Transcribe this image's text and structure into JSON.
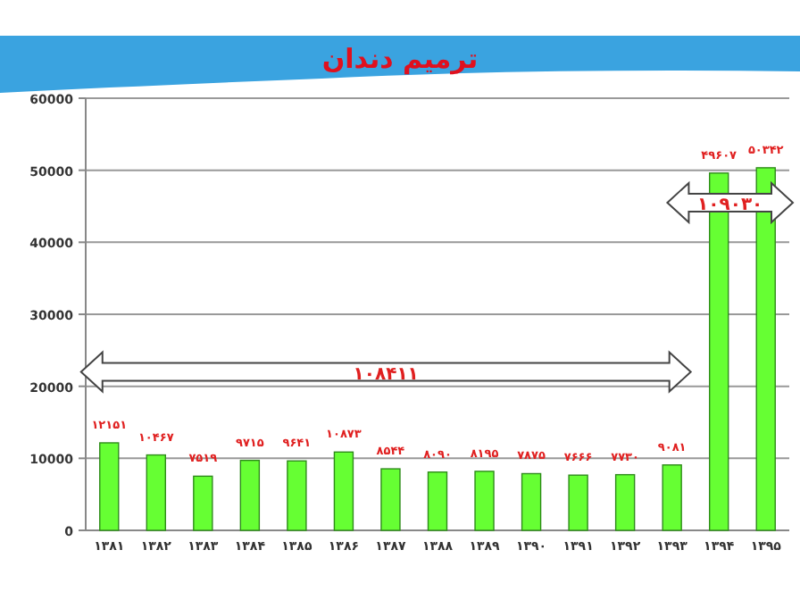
{
  "chart_data": {
    "type": "bar",
    "title": "ترمیم دندان",
    "categories": [
      "۱۳۸۱",
      "۱۳۸۲",
      "۱۳۸۳",
      "۱۳۸۴",
      "۱۳۸۵",
      "۱۳۸۶",
      "۱۳۸۷",
      "۱۳۸۸",
      "۱۳۸۹",
      "۱۳۹۰",
      "۱۳۹۱",
      "۱۳۹۲",
      "۱۳۹۳",
      "۱۳۹۴",
      "۱۳۹۵"
    ],
    "values": [
      12151,
      10467,
      7519,
      9715,
      9641,
      10873,
      8544,
      8090,
      8195,
      7875,
      7666,
      7730,
      9081,
      49607,
      50342
    ],
    "value_labels": [
      "۱۲۱۵۱",
      "۱۰۴۶۷",
      "۷۵۱۹",
      "۹۷۱۵",
      "۹۶۴۱",
      "۱۰۸۷۳",
      "۸۵۴۴",
      "۸۰۹۰",
      "۸۱۹۵",
      "۷۸۷۵",
      "۷۶۶۶",
      "۷۷۳۰",
      "۹۰۸۱",
      "۴۹۶۰۷",
      "۵۰۳۴۲"
    ],
    "color": "#66ff33",
    "ylim": [
      0,
      60000
    ],
    "yticks": [
      0,
      10000,
      20000,
      30000,
      40000,
      50000,
      60000
    ],
    "grid": "y",
    "annotations": [
      "۱۰۸۴۱۱",
      "۱۰۹۰۳۰"
    ]
  }
}
